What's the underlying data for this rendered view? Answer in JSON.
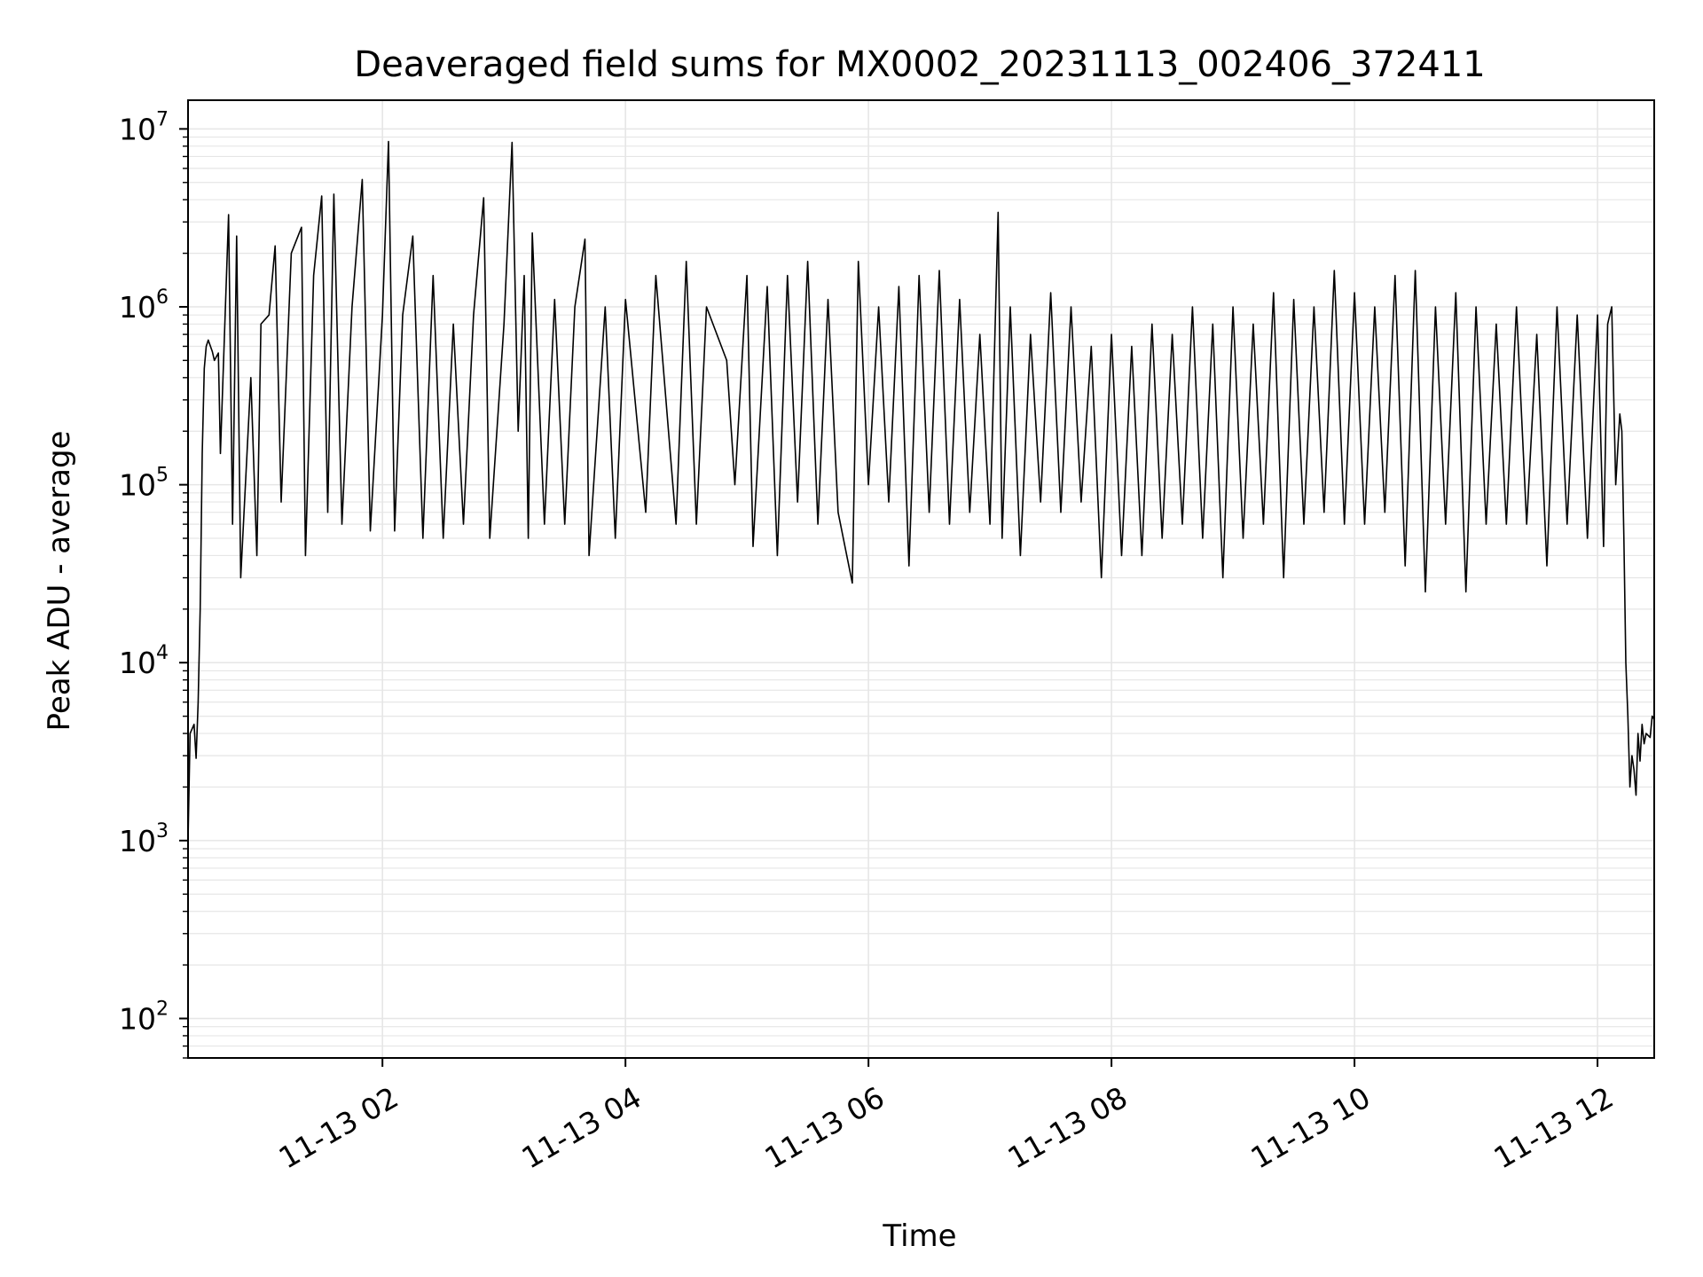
{
  "chart_data": {
    "type": "line",
    "title": "Deaveraged field sums for MX0002_20231113_002406_372411",
    "xlabel": "Time",
    "ylabel": "Peak ADU - average",
    "y_scale": "log",
    "ylim": [
      60,
      14500000
    ],
    "xlim": [
      "11-13 00:24",
      "11-13 12:28"
    ],
    "grid": true,
    "line_color": "#000000",
    "grid_color": "#e6e6e6",
    "x_ticks": [
      {
        "t": "11-13 02:00",
        "label": "11-13 02"
      },
      {
        "t": "11-13 04:00",
        "label": "11-13 04"
      },
      {
        "t": "11-13 06:00",
        "label": "11-13 06"
      },
      {
        "t": "11-13 08:00",
        "label": "11-13 08"
      },
      {
        "t": "11-13 10:00",
        "label": "11-13 10"
      },
      {
        "t": "11-13 12:00",
        "label": "11-13 12"
      }
    ],
    "y_ticks": [
      {
        "value": 100,
        "base": "10",
        "exp": "2"
      },
      {
        "value": 1000,
        "base": "10",
        "exp": "3"
      },
      {
        "value": 10000,
        "base": "10",
        "exp": "4"
      },
      {
        "value": 100000,
        "base": "10",
        "exp": "5"
      },
      {
        "value": 1000000,
        "base": "10",
        "exp": "6"
      },
      {
        "value": 10000000,
        "base": "10",
        "exp": "7"
      }
    ],
    "series": [
      {
        "points": [
          [
            "11-13 00:24",
            1000
          ],
          [
            "11-13 00:25",
            4000
          ],
          [
            "11-13 00:27",
            4500
          ],
          [
            "11-13 00:28",
            2900
          ],
          [
            "11-13 00:29",
            6000
          ],
          [
            "11-13 00:30",
            20000
          ],
          [
            "11-13 00:31",
            150000
          ],
          [
            "11-13 00:32",
            450000
          ],
          [
            "11-13 00:33",
            600000
          ],
          [
            "11-13 00:34",
            650000
          ],
          [
            "11-13 00:36",
            560000
          ],
          [
            "11-13 00:37",
            500000
          ],
          [
            "11-13 00:39",
            550000
          ],
          [
            "11-13 00:40",
            150000
          ],
          [
            "11-13 00:44",
            3300000
          ],
          [
            "11-13 00:46",
            60000
          ],
          [
            "11-13 00:48",
            2500000
          ],
          [
            "11-13 00:50",
            30000
          ],
          [
            "11-13 00:55",
            400000
          ],
          [
            "11-13 00:58",
            40000
          ],
          [
            "11-13 01:00",
            800000
          ],
          [
            "11-13 01:04",
            900000
          ],
          [
            "11-13 01:07",
            2200000
          ],
          [
            "11-13 01:10",
            80000
          ],
          [
            "11-13 01:15",
            2000000
          ],
          [
            "11-13 01:20",
            2800000
          ],
          [
            "11-13 01:22",
            40000
          ],
          [
            "11-13 01:26",
            1500000
          ],
          [
            "11-13 01:30",
            4200000
          ],
          [
            "11-13 01:33",
            70000
          ],
          [
            "11-13 01:36",
            4300000
          ],
          [
            "11-13 01:40",
            60000
          ],
          [
            "11-13 01:45",
            1000000
          ],
          [
            "11-13 01:50",
            5200000
          ],
          [
            "11-13 01:54",
            55000
          ],
          [
            "11-13 02:00",
            900000
          ],
          [
            "11-13 02:03",
            8500000
          ],
          [
            "11-13 02:06",
            55000
          ],
          [
            "11-13 02:10",
            900000
          ],
          [
            "11-13 02:15",
            2500000
          ],
          [
            "11-13 02:20",
            50000
          ],
          [
            "11-13 02:25",
            1500000
          ],
          [
            "11-13 02:30",
            50000
          ],
          [
            "11-13 02:35",
            800000
          ],
          [
            "11-13 02:40",
            60000
          ],
          [
            "11-13 02:45",
            900000
          ],
          [
            "11-13 02:50",
            4100000
          ],
          [
            "11-13 02:53",
            50000
          ],
          [
            "11-13 03:00",
            800000
          ],
          [
            "11-13 03:04",
            8400000
          ],
          [
            "11-13 03:07",
            200000
          ],
          [
            "11-13 03:10",
            1500000
          ],
          [
            "11-13 03:12",
            50000
          ],
          [
            "11-13 03:14",
            2600000
          ],
          [
            "11-13 03:20",
            60000
          ],
          [
            "11-13 03:25",
            1100000
          ],
          [
            "11-13 03:30",
            60000
          ],
          [
            "11-13 03:35",
            1000000
          ],
          [
            "11-13 03:40",
            2400000
          ],
          [
            "11-13 03:42",
            40000
          ],
          [
            "11-13 03:50",
            1000000
          ],
          [
            "11-13 03:55",
            50000
          ],
          [
            "11-13 04:00",
            1100000
          ],
          [
            "11-13 04:10",
            70000
          ],
          [
            "11-13 04:15",
            1500000
          ],
          [
            "11-13 04:25",
            60000
          ],
          [
            "11-13 04:30",
            1800000
          ],
          [
            "11-13 04:35",
            60000
          ],
          [
            "11-13 04:40",
            1000000
          ],
          [
            "11-13 04:50",
            500000
          ],
          [
            "11-13 04:54",
            100000
          ],
          [
            "11-13 05:00",
            1500000
          ],
          [
            "11-13 05:03",
            45000
          ],
          [
            "11-13 05:10",
            1300000
          ],
          [
            "11-13 05:15",
            40000
          ],
          [
            "11-13 05:20",
            1500000
          ],
          [
            "11-13 05:25",
            80000
          ],
          [
            "11-13 05:30",
            1800000
          ],
          [
            "11-13 05:35",
            60000
          ],
          [
            "11-13 05:40",
            1100000
          ],
          [
            "11-13 05:45",
            70000
          ],
          [
            "11-13 05:52",
            28000
          ],
          [
            "11-13 05:55",
            1800000
          ],
          [
            "11-13 06:00",
            100000
          ],
          [
            "11-13 06:05",
            1000000
          ],
          [
            "11-13 06:10",
            80000
          ],
          [
            "11-13 06:15",
            1300000
          ],
          [
            "11-13 06:20",
            35000
          ],
          [
            "11-13 06:25",
            1500000
          ],
          [
            "11-13 06:30",
            70000
          ],
          [
            "11-13 06:35",
            1600000
          ],
          [
            "11-13 06:40",
            60000
          ],
          [
            "11-13 06:45",
            1100000
          ],
          [
            "11-13 06:50",
            70000
          ],
          [
            "11-13 06:55",
            700000
          ],
          [
            "11-13 07:00",
            60000
          ],
          [
            "11-13 07:04",
            3400000
          ],
          [
            "11-13 07:06",
            50000
          ],
          [
            "11-13 07:10",
            1000000
          ],
          [
            "11-13 07:15",
            40000
          ],
          [
            "11-13 07:20",
            700000
          ],
          [
            "11-13 07:25",
            80000
          ],
          [
            "11-13 07:30",
            1200000
          ],
          [
            "11-13 07:35",
            70000
          ],
          [
            "11-13 07:40",
            1000000
          ],
          [
            "11-13 07:45",
            80000
          ],
          [
            "11-13 07:50",
            600000
          ],
          [
            "11-13 07:55",
            30000
          ],
          [
            "11-13 08:00",
            700000
          ],
          [
            "11-13 08:05",
            40000
          ],
          [
            "11-13 08:10",
            600000
          ],
          [
            "11-13 08:15",
            40000
          ],
          [
            "11-13 08:20",
            800000
          ],
          [
            "11-13 08:25",
            50000
          ],
          [
            "11-13 08:30",
            700000
          ],
          [
            "11-13 08:35",
            60000
          ],
          [
            "11-13 08:40",
            1000000
          ],
          [
            "11-13 08:45",
            50000
          ],
          [
            "11-13 08:50",
            800000
          ],
          [
            "11-13 08:55",
            30000
          ],
          [
            "11-13 09:00",
            1000000
          ],
          [
            "11-13 09:05",
            50000
          ],
          [
            "11-13 09:10",
            800000
          ],
          [
            "11-13 09:15",
            60000
          ],
          [
            "11-13 09:20",
            1200000
          ],
          [
            "11-13 09:25",
            30000
          ],
          [
            "11-13 09:30",
            1100000
          ],
          [
            "11-13 09:35",
            60000
          ],
          [
            "11-13 09:40",
            1000000
          ],
          [
            "11-13 09:45",
            70000
          ],
          [
            "11-13 09:50",
            1600000
          ],
          [
            "11-13 09:55",
            60000
          ],
          [
            "11-13 10:00",
            1200000
          ],
          [
            "11-13 10:05",
            60000
          ],
          [
            "11-13 10:10",
            1000000
          ],
          [
            "11-13 10:15",
            70000
          ],
          [
            "11-13 10:20",
            1500000
          ],
          [
            "11-13 10:25",
            35000
          ],
          [
            "11-13 10:30",
            1600000
          ],
          [
            "11-13 10:35",
            25000
          ],
          [
            "11-13 10:40",
            1000000
          ],
          [
            "11-13 10:45",
            60000
          ],
          [
            "11-13 10:50",
            1200000
          ],
          [
            "11-13 10:55",
            25000
          ],
          [
            "11-13 11:00",
            1000000
          ],
          [
            "11-13 11:05",
            60000
          ],
          [
            "11-13 11:10",
            800000
          ],
          [
            "11-13 11:15",
            60000
          ],
          [
            "11-13 11:20",
            1000000
          ],
          [
            "11-13 11:25",
            60000
          ],
          [
            "11-13 11:30",
            700000
          ],
          [
            "11-13 11:35",
            35000
          ],
          [
            "11-13 11:40",
            1000000
          ],
          [
            "11-13 11:45",
            60000
          ],
          [
            "11-13 11:50",
            900000
          ],
          [
            "11-13 11:55",
            50000
          ],
          [
            "11-13 12:00",
            900000
          ],
          [
            "11-13 12:03",
            45000
          ],
          [
            "11-13 12:05",
            800000
          ],
          [
            "11-13 12:07",
            1000000
          ],
          [
            "11-13 12:09",
            100000
          ],
          [
            "11-13 12:11",
            250000
          ],
          [
            "11-13 12:12",
            200000
          ],
          [
            "11-13 12:13",
            50000
          ],
          [
            "11-13 12:14",
            10000
          ],
          [
            "11-13 12:15",
            5000
          ],
          [
            "11-13 12:16",
            2000
          ],
          [
            "11-13 12:17",
            3000
          ],
          [
            "11-13 12:18",
            2500
          ],
          [
            "11-13 12:19",
            1800
          ],
          [
            "11-13 12:20",
            4000
          ],
          [
            "11-13 12:21",
            2800
          ],
          [
            "11-13 12:22",
            4500
          ],
          [
            "11-13 12:23",
            3500
          ],
          [
            "11-13 12:24",
            4000
          ],
          [
            "11-13 12:26",
            3800
          ],
          [
            "11-13 12:27",
            5000
          ],
          [
            "11-13 12:28",
            4800
          ]
        ]
      }
    ]
  }
}
